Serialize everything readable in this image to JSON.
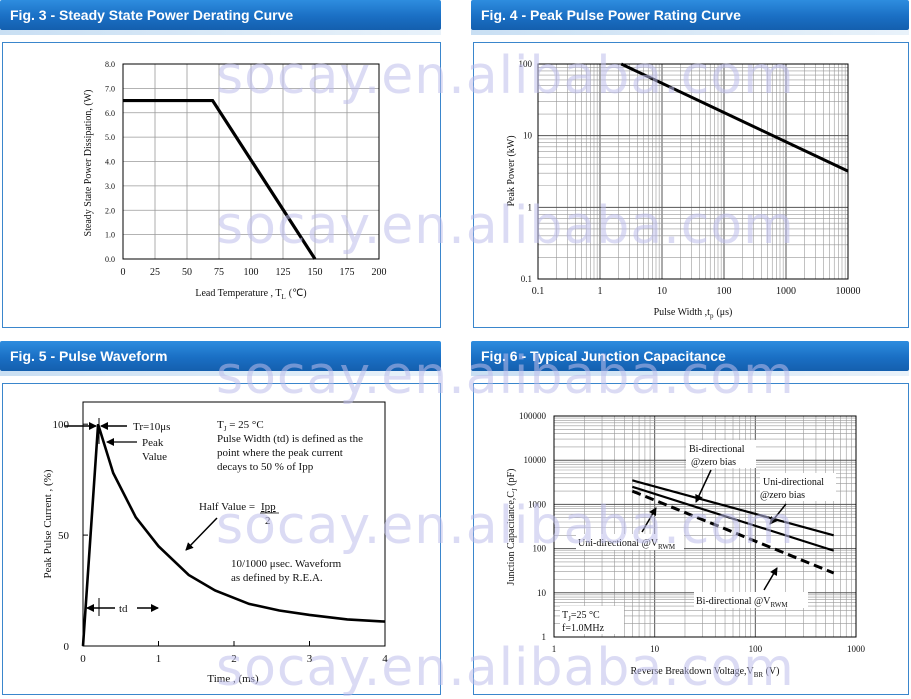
{
  "watermark": "socay.en.alibaba.com",
  "colors": {
    "header": "#1a6fc4",
    "border": "#3a86cc",
    "curve": "#000000"
  },
  "fig3": {
    "header": "Fig. 3 - Steady State Power Derating Curve",
    "chart_data": {
      "type": "line",
      "title": "",
      "xlabel": "Lead Temperature , T",
      "xlabel_sub": "L",
      "xlabel_unit": "(℃)",
      "ylabel": "Steady State Power Dissipation, (W)",
      "xlim": [
        0,
        200
      ],
      "ylim": [
        0,
        8
      ],
      "xticks": [
        "0",
        "25",
        "50",
        "75",
        "100",
        "125",
        "150",
        "175",
        "200"
      ],
      "yticks": [
        "0.0",
        "1.0",
        "2.0",
        "3.0",
        "4.0",
        "5.0",
        "6.0",
        "7.0",
        "8.0"
      ],
      "grid": true,
      "series": [
        {
          "x": [
            0,
            70,
            150
          ],
          "y": [
            6.5,
            6.5,
            0
          ]
        }
      ]
    }
  },
  "fig4": {
    "header": "Fig. 4 - Peak Pulse Power Rating Curve",
    "chart_data": {
      "type": "line",
      "title": "",
      "xlabel": "Pulse Width ,t",
      "xlabel_sub": "p",
      "xlabel_unit": "(μs)",
      "ylabel": "Peak Power (kW)",
      "xscale": "log",
      "yscale": "log",
      "xlim": [
        0.1,
        10000
      ],
      "ylim": [
        0.1,
        100
      ],
      "xticks": [
        "0.1",
        "1",
        "10",
        "100",
        "1000",
        "10000"
      ],
      "yticks": [
        "0.1",
        "1",
        "10",
        "100"
      ],
      "grid": true,
      "series": [
        {
          "x": [
            2.2,
            10000
          ],
          "y": [
            100,
            3.2
          ]
        }
      ]
    }
  },
  "fig5": {
    "header": "Fig. 5 - Pulse Waveform",
    "chart_data": {
      "type": "line",
      "title": "",
      "xlabel": "Time , (ms)",
      "ylabel": "Peak Pulse Current , (%)",
      "xlim": [
        0,
        4
      ],
      "ylim": [
        0,
        110
      ],
      "xticks": [
        "0",
        "1",
        "2",
        "3",
        "4"
      ],
      "yticks": [
        "0",
        "50",
        "100"
      ],
      "grid": false,
      "series": [
        {
          "x": [
            0,
            0.2,
            0.4,
            0.7,
            1.0,
            1.4,
            1.75,
            2.2,
            2.6,
            3.0,
            3.5,
            4.0
          ],
          "y": [
            0,
            100,
            78,
            58,
            45,
            32,
            25,
            19,
            16,
            14,
            12,
            11
          ]
        }
      ]
    },
    "annotations": {
      "tr": "Tr=10μs",
      "peak1": "Peak",
      "peak2": "Value",
      "tj_pre": "T",
      "tj_sub": "J",
      "tj_post": " = 25 °C",
      "pw1": "Pulse Width (td) is defined as the",
      "pw2": "point where the peak current",
      "pw3": "decays to 50 % of Ipp",
      "half_pre": "Half Value = ",
      "half_num": "Ipp",
      "half_den": "2",
      "wave1": "10/1000 μsec. Waveform",
      "wave2": "as defined by R.E.A.",
      "td": "td"
    }
  },
  "fig6": {
    "header": "Fig. 6 - Typical Junction Capacitance",
    "chart_data": {
      "type": "line",
      "title": "",
      "xlabel": "Reverse Breakdown Voltage,V",
      "xlabel_sub": "BR",
      "xlabel_unit": " (V)",
      "ylabel": "Junction Capacitance,C",
      "ylabel_sub": "J",
      "ylabel_unit": " (pF)",
      "xscale": "log",
      "yscale": "log",
      "xlim": [
        1,
        1000
      ],
      "ylim": [
        1,
        100000
      ],
      "xticks": [
        "1",
        "10",
        "100",
        "1000"
      ],
      "yticks": [
        "1",
        "10",
        "100",
        "1000",
        "10000",
        "100000"
      ],
      "grid": true,
      "series": [
        {
          "name": "Bi-directional @zero bias",
          "x": [
            6,
            600
          ],
          "y": [
            3500,
            200
          ]
        },
        {
          "name": "Uni-directional @zero bias",
          "x": [
            6,
            600
          ],
          "y": [
            2500,
            90
          ]
        },
        {
          "name": "Bi-directional @V",
          "name_sub": "RWM",
          "x": [
            6,
            600
          ],
          "y": [
            2000,
            28
          ],
          "dashed": true
        }
      ]
    },
    "labels": {
      "bi_zero_1": "Bi-directional",
      "bi_zero_2": "@zero bias",
      "uni_zero_1": "Uni-directional",
      "uni_zero_2": "@zero bias",
      "uni_rwm": "Uni-directional @V",
      "uni_rwm_sub": "RWM",
      "bi_rwm": "Bi-directional @V",
      "bi_rwm_sub": "RWM",
      "tj_pre": "T",
      "tj_sub": "J",
      "tj_post": "=25 °C",
      "freq": "f=1.0MHz"
    }
  }
}
